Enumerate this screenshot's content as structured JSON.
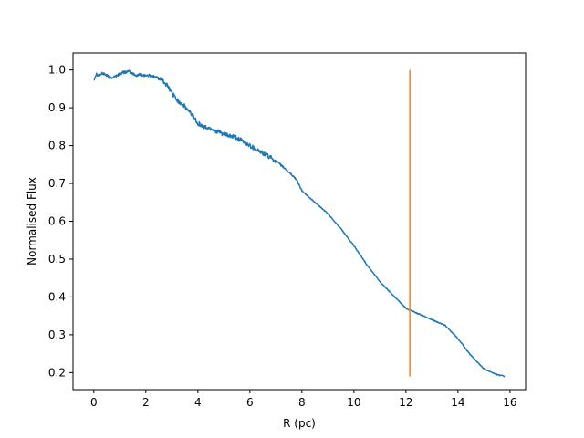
{
  "chart_data": {
    "type": "line",
    "title": "",
    "xlabel": "R (pc)",
    "ylabel": "Normalised Flux",
    "xlim": [
      -0.8,
      16.6
    ],
    "ylim": [
      0.155,
      1.045
    ],
    "xticks": [
      0,
      2,
      4,
      6,
      8,
      10,
      12,
      14,
      16
    ],
    "yticks": [
      0.2,
      0.3,
      0.4,
      0.5,
      0.6,
      0.7,
      0.8,
      0.9,
      1.0
    ],
    "xtick_labels": [
      "0",
      "2",
      "4",
      "6",
      "8",
      "10",
      "12",
      "14",
      "16"
    ],
    "ytick_labels": [
      "0.2",
      "0.3",
      "0.4",
      "0.5",
      "0.6",
      "0.7",
      "0.8",
      "0.9",
      "1.0"
    ],
    "grid": false,
    "legend": "none",
    "series": [
      {
        "color": "#1f77b4",
        "noisy": true,
        "x": [
          0.0,
          0.1,
          0.2,
          0.3,
          0.4,
          0.5,
          0.6,
          0.8,
          1.0,
          1.2,
          1.4,
          1.6,
          1.8,
          2.0,
          2.2,
          2.4,
          2.6,
          2.8,
          3.0,
          3.2,
          3.4,
          3.6,
          3.8,
          4.0,
          4.2,
          4.5,
          5.0,
          5.5,
          6.0,
          6.5,
          7.0,
          7.5,
          7.8,
          8.0,
          8.5,
          9.0,
          9.5,
          10.0,
          10.5,
          11.0,
          11.5,
          12.0,
          12.5,
          13.0,
          13.5,
          14.0,
          14.5,
          15.0,
          15.5,
          15.8
        ],
        "y": [
          0.975,
          0.99,
          0.985,
          0.99,
          0.99,
          0.985,
          0.98,
          0.982,
          0.99,
          0.995,
          0.995,
          0.985,
          0.988,
          0.985,
          0.985,
          0.98,
          0.975,
          0.96,
          0.94,
          0.92,
          0.91,
          0.895,
          0.88,
          0.86,
          0.85,
          0.845,
          0.83,
          0.82,
          0.8,
          0.78,
          0.76,
          0.73,
          0.71,
          0.68,
          0.65,
          0.62,
          0.58,
          0.535,
          0.485,
          0.44,
          0.405,
          0.37,
          0.355,
          0.34,
          0.325,
          0.29,
          0.245,
          0.21,
          0.195,
          0.19
        ]
      },
      {
        "color": "#ff7f0e",
        "noisy": false,
        "x": [
          12.15,
          12.15
        ],
        "y": [
          0.19,
          1.0
        ]
      }
    ]
  }
}
